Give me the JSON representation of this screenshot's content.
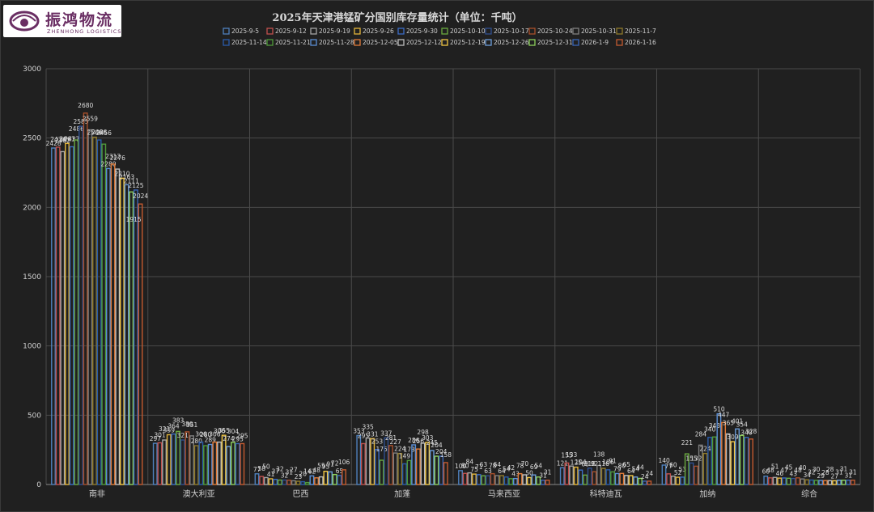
{
  "logo": {
    "name_cn": "振鸿物流",
    "name_en": "ZHENHONG LOGISTICS"
  },
  "chart_data": {
    "type": "bar",
    "title": "2025年天津港锰矿分国别库存量统计（单位：千吨）",
    "xlabel": "",
    "ylabel": "",
    "ylim": [
      0,
      3000
    ],
    "yticks": [
      0,
      500,
      1000,
      1500,
      2000,
      2500,
      3000
    ],
    "grid": true,
    "legend_position": "top",
    "categories": [
      "南非",
      "澳大利亚",
      "巴西",
      "加蓬",
      "马来西亚",
      "科特迪瓦",
      "加纳",
      "综合"
    ],
    "series": [
      {
        "name": "2025-9-5",
        "color": "#4f81bd",
        "values": [
          2428,
          297,
          77,
          353,
          100,
          121,
          140,
          60
        ]
      },
      {
        "name": "2025-9-12",
        "color": "#c0504d",
        "values": [
          2434,
          301,
          58,
          295,
          80,
          155,
          77,
          48
        ]
      },
      {
        "name": "2025-9-19",
        "color": "#a5a5a5",
        "values": [
          2402,
          321,
          50,
          335,
          84,
          133,
          60,
          51
        ]
      },
      {
        "name": "2025-9-26",
        "color": "#e3b53a",
        "values": [
          2461,
          359,
          41,
          331,
          75,
          125,
          52,
          46
        ]
      },
      {
        "name": "2025-9-30",
        "color": "#3b6cc6",
        "values": [
          2437,
          364,
          37,
          253,
          71,
          104,
          53,
          47
        ]
      },
      {
        "name": "2025-10-10",
        "color": "#6aaa3f",
        "values": [
          2486,
          383,
          32,
          175,
          63,
          68,
          221,
          45
        ]
      },
      {
        "name": "2025-10-17",
        "color": "#2f4f8f",
        "values": [
          2585,
          321,
          32,
          337,
          63,
          118,
          155,
          43
        ]
      },
      {
        "name": "2025-10-24",
        "color": "#a84f2a",
        "values": [
          2680,
          380,
          31,
          281,
          78,
          92,
          132,
          48
        ]
      },
      {
        "name": "2025-10-31",
        "color": "#7f7f7f",
        "values": [
          2559,
          351,
          27,
          227,
          64,
          138,
          284,
          40
        ]
      },
      {
        "name": "2025-11-7",
        "color": "#8f7a2a",
        "values": [
          2506,
          280,
          23,
          224,
          64,
          116,
          224,
          34
        ]
      },
      {
        "name": "2025-11-14",
        "color": "#2a5caa",
        "values": [
          2486,
          306,
          20,
          149,
          54,
          106,
          340,
          32
        ]
      },
      {
        "name": "2025-11-21",
        "color": "#4f9a3a",
        "values": [
          2456,
          280,
          14,
          173,
          42,
          91,
          343,
          30
        ]
      },
      {
        "name": "2025-11-28",
        "color": "#5b8fd6",
        "values": [
          2280,
          289,
          62,
          286,
          43,
          79,
          510,
          29
        ]
      },
      {
        "name": "2025-12-05",
        "color": "#e07b39",
        "values": [
          2312,
          306,
          48,
          256,
          78,
          80,
          447,
          28
        ]
      },
      {
        "name": "2025-12-12",
        "color": "#bdbdbd",
        "values": [
          2276,
          306,
          55,
          298,
          70,
          65,
          365,
          28
        ]
      },
      {
        "name": "2025-12-19",
        "color": "#f2c744",
        "values": [
          2210,
          355,
          95,
          303,
          50,
          64,
          309,
          27
        ]
      },
      {
        "name": "2025-12-26",
        "color": "#6d9edb",
        "values": [
          2163,
          274,
          91,
          245,
          69,
          54,
          401,
          31
        ]
      },
      {
        "name": "2025-12-31",
        "color": "#8ccf5a",
        "values": [
          2111,
          304,
          72,
          204,
          54,
          44,
          354,
          31
        ]
      },
      {
        "name": "2026-1-9",
        "color": "#3a66b8",
        "values": [
          2125,
          295,
          65,
          204,
          31,
          24,
          340,
          31
        ]
      },
      {
        "name": "2026-1-16",
        "color": "#c45a2f",
        "values": [
          2024,
          295,
          106,
          158,
          31,
          24,
          328,
          31
        ]
      }
    ],
    "extra_labels": [
      {
        "category": "南非",
        "value": 1915
      }
    ]
  }
}
